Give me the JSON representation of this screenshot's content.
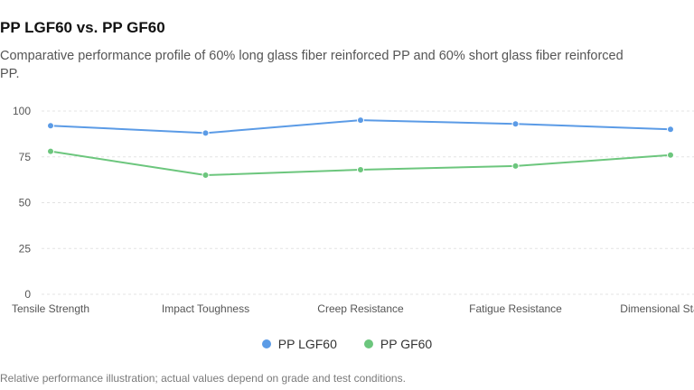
{
  "header": {
    "title": "PP LGF60 vs. PP GF60",
    "subtitle": "Comparative performance profile of 60% long glass fiber reinforced PP and 60% short glass fiber reinforced PP."
  },
  "footnote": "Relative performance illustration; actual values depend on grade and test conditions.",
  "chart_data": {
    "type": "line",
    "categories": [
      "Tensile Strength",
      "Impact Toughness",
      "Creep Resistance",
      "Fatigue Resistance",
      "Dimensional Stability"
    ],
    "series": [
      {
        "name": "PP LGF60",
        "color": "#5B9BE6",
        "values": [
          92,
          88,
          95,
          93,
          90
        ]
      },
      {
        "name": "PP GF60",
        "color": "#6CC67D",
        "values": [
          78,
          65,
          68,
          70,
          76
        ]
      }
    ],
    "ylim": [
      0,
      100
    ],
    "yticks": [
      0,
      25,
      50,
      75,
      100
    ],
    "grid": true,
    "legend_position": "bottom-center",
    "xlabel": "",
    "ylabel": ""
  }
}
